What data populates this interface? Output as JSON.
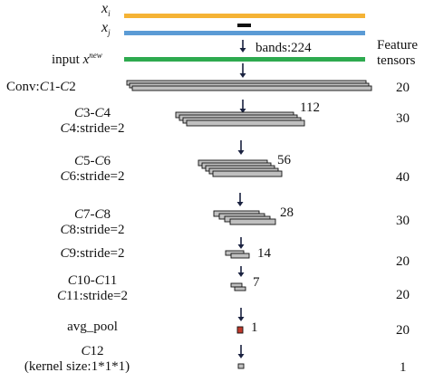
{
  "inputs": {
    "xi_base": "x",
    "xi_sub": "i",
    "xj_base": "x",
    "xj_sub": "j",
    "input_prefix": "input ",
    "input_base": "x",
    "input_sup": "new",
    "bands_label": "bands:224",
    "colors": {
      "xi": "#f5b335",
      "xj": "#5b9bd5",
      "input": "#2eaa4f"
    }
  },
  "feature_header": {
    "line1": "Feature",
    "line2": "tensors"
  },
  "layers": [
    {
      "id": "conv",
      "size_label": "",
      "feature_count": "20"
    },
    {
      "id": "c3c4",
      "size_label": "112",
      "feature_count": "30"
    },
    {
      "id": "c5c6",
      "size_label": "56",
      "feature_count": "40"
    },
    {
      "id": "c7c8",
      "size_label": "28",
      "feature_count": "30"
    },
    {
      "id": "c9",
      "size_label": "14",
      "feature_count": "20"
    },
    {
      "id": "c10c11",
      "size_label": "7",
      "feature_count": "20"
    },
    {
      "id": "pool",
      "size_label": "1",
      "feature_count": "20"
    },
    {
      "id": "c12",
      "size_label": "",
      "feature_count": "1"
    }
  ],
  "labels": {
    "conv": {
      "a": "Conv:",
      "b": "C",
      "c": "1-",
      "d": "C",
      "e": "2"
    },
    "c3c4": {
      "l1a": "C",
      "l1b": "3-",
      "l1c": "C",
      "l1d": "4",
      "l2a": "C",
      "l2b": "4:stride=2"
    },
    "c5c6": {
      "l1a": "C",
      "l1b": "5-",
      "l1c": "C",
      "l1d": "6",
      "l2a": "C",
      "l2b": "6:stride=2"
    },
    "c7c8": {
      "l1a": "C",
      "l1b": "7-",
      "l1c": "C",
      "l1d": "8",
      "l2a": "C",
      "l2b": "8:stride=2"
    },
    "c9": {
      "a": "C",
      "b": "9:stride=2"
    },
    "c10c11": {
      "l1a": "C",
      "l1b": "10-",
      "l1c": "C",
      "l1d": "11",
      "l2a": "C",
      "l2b": "11:stride=2"
    },
    "pool": {
      "text": "avg_pool"
    },
    "c12": {
      "l1a": "C",
      "l1b": "12",
      "l2": "(kernel size:1*1*1)"
    }
  },
  "colors": {
    "tensor_fill": "#c0c0c0",
    "pool_fill": "#c0392b",
    "arrow": "#1a2240"
  }
}
